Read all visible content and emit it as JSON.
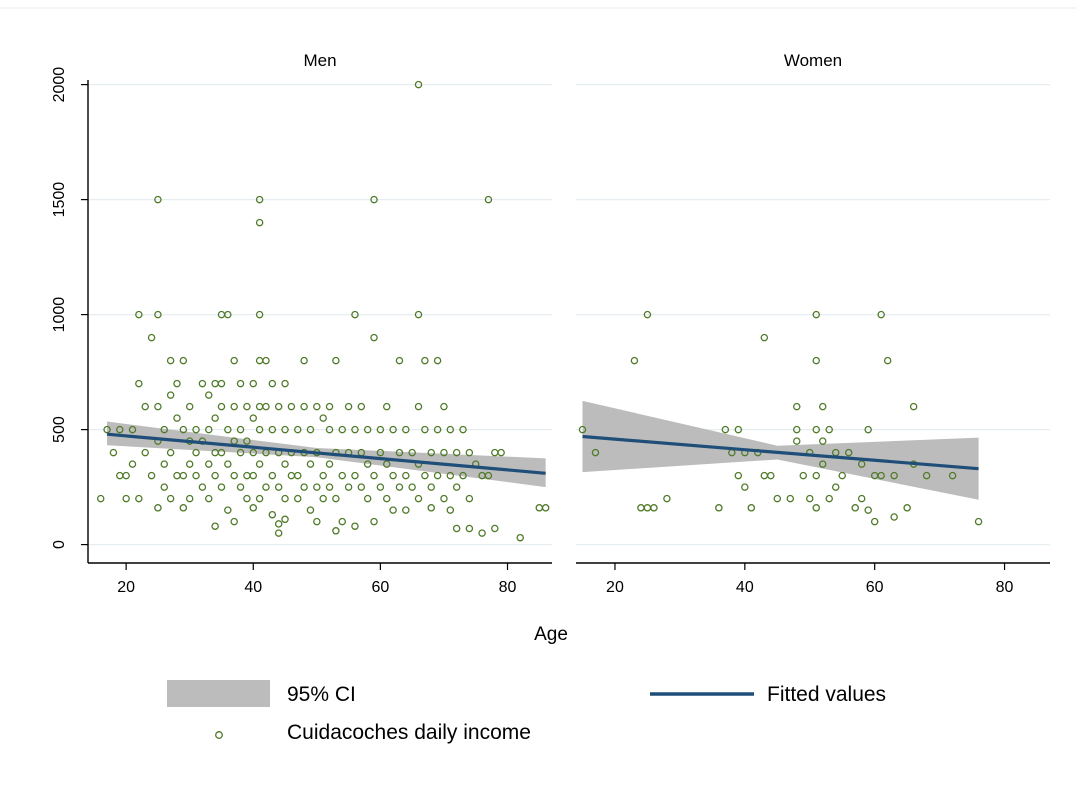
{
  "chart_data": {
    "type": "scatter",
    "xlabel": "Age",
    "ylabel": "",
    "xticks": [
      20,
      40,
      60,
      80
    ],
    "yticks": [
      0,
      500,
      1000,
      1500,
      2000
    ],
    "xlim": [
      14,
      87
    ],
    "ylim": [
      -80,
      2020
    ],
    "grid": true,
    "legend_position": "bottom",
    "legend": {
      "ci_label": "95% CI",
      "fit_label": "Fitted values",
      "scatter_label": "Cuidacoches daily income"
    },
    "colors": {
      "scatter": "#4f7a28",
      "fit": "#1f4e79",
      "ci": "#bcbcbc",
      "grid": "#e6eef1"
    },
    "panels": [
      {
        "title": "Men",
        "fit": {
          "x": [
            17,
            86
          ],
          "y": [
            480,
            310
          ]
        },
        "ci": {
          "x": [
            17,
            50,
            86
          ],
          "upper": [
            535,
            420,
            375
          ],
          "lower": [
            432,
            380,
            250
          ]
        },
        "scatter": [
          [
            16,
            200
          ],
          [
            17,
            500
          ],
          [
            18,
            400
          ],
          [
            19,
            300
          ],
          [
            19,
            500
          ],
          [
            20,
            300
          ],
          [
            20,
            200
          ],
          [
            21,
            350
          ],
          [
            21,
            500
          ],
          [
            22,
            700
          ],
          [
            22,
            1000
          ],
          [
            22,
            200
          ],
          [
            23,
            400
          ],
          [
            23,
            600
          ],
          [
            24,
            900
          ],
          [
            24,
            300
          ],
          [
            25,
            1000
          ],
          [
            25,
            1500
          ],
          [
            25,
            600
          ],
          [
            25,
            450
          ],
          [
            25,
            160
          ],
          [
            26,
            500
          ],
          [
            26,
            350
          ],
          [
            26,
            250
          ],
          [
            27,
            800
          ],
          [
            27,
            650
          ],
          [
            27,
            400
          ],
          [
            27,
            200
          ],
          [
            28,
            700
          ],
          [
            28,
            550
          ],
          [
            28,
            300
          ],
          [
            29,
            800
          ],
          [
            29,
            500
          ],
          [
            29,
            300
          ],
          [
            29,
            160
          ],
          [
            30,
            600
          ],
          [
            30,
            450
          ],
          [
            30,
            350
          ],
          [
            30,
            200
          ],
          [
            31,
            500
          ],
          [
            31,
            400
          ],
          [
            31,
            300
          ],
          [
            32,
            700
          ],
          [
            32,
            450
          ],
          [
            32,
            250
          ],
          [
            33,
            650
          ],
          [
            33,
            500
          ],
          [
            33,
            350
          ],
          [
            33,
            200
          ],
          [
            34,
            700
          ],
          [
            34,
            550
          ],
          [
            34,
            400
          ],
          [
            34,
            300
          ],
          [
            34,
            80
          ],
          [
            35,
            1000
          ],
          [
            35,
            700
          ],
          [
            35,
            600
          ],
          [
            35,
            400
          ],
          [
            35,
            250
          ],
          [
            36,
            1000
          ],
          [
            36,
            500
          ],
          [
            36,
            350
          ],
          [
            36,
            150
          ],
          [
            37,
            800
          ],
          [
            37,
            600
          ],
          [
            37,
            450
          ],
          [
            37,
            300
          ],
          [
            37,
            100
          ],
          [
            38,
            700
          ],
          [
            38,
            500
          ],
          [
            38,
            400
          ],
          [
            38,
            250
          ],
          [
            39,
            600
          ],
          [
            39,
            450
          ],
          [
            39,
            300
          ],
          [
            39,
            200
          ],
          [
            40,
            700
          ],
          [
            40,
            550
          ],
          [
            40,
            400
          ],
          [
            40,
            300
          ],
          [
            40,
            160
          ],
          [
            41,
            1500
          ],
          [
            41,
            1400
          ],
          [
            41,
            1000
          ],
          [
            41,
            800
          ],
          [
            41,
            600
          ],
          [
            41,
            500
          ],
          [
            41,
            350
          ],
          [
            41,
            200
          ],
          [
            42,
            800
          ],
          [
            42,
            600
          ],
          [
            42,
            400
          ],
          [
            42,
            250
          ],
          [
            43,
            700
          ],
          [
            43,
            500
          ],
          [
            43,
            300
          ],
          [
            43,
            130
          ],
          [
            44,
            600
          ],
          [
            44,
            400
          ],
          [
            44,
            250
          ],
          [
            44,
            90
          ],
          [
            44,
            50
          ],
          [
            45,
            700
          ],
          [
            45,
            500
          ],
          [
            45,
            350
          ],
          [
            45,
            200
          ],
          [
            45,
            110
          ],
          [
            46,
            600
          ],
          [
            46,
            400
          ],
          [
            46,
            300
          ],
          [
            47,
            500
          ],
          [
            47,
            300
          ],
          [
            47,
            200
          ],
          [
            48,
            800
          ],
          [
            48,
            600
          ],
          [
            48,
            400
          ],
          [
            48,
            250
          ],
          [
            49,
            500
          ],
          [
            49,
            350
          ],
          [
            49,
            150
          ],
          [
            50,
            600
          ],
          [
            50,
            400
          ],
          [
            50,
            250
          ],
          [
            50,
            100
          ],
          [
            51,
            550
          ],
          [
            51,
            300
          ],
          [
            51,
            200
          ],
          [
            52,
            600
          ],
          [
            52,
            500
          ],
          [
            52,
            350
          ],
          [
            52,
            250
          ],
          [
            53,
            800
          ],
          [
            53,
            400
          ],
          [
            53,
            200
          ],
          [
            53,
            60
          ],
          [
            54,
            500
          ],
          [
            54,
            300
          ],
          [
            54,
            100
          ],
          [
            55,
            600
          ],
          [
            55,
            400
          ],
          [
            55,
            250
          ],
          [
            56,
            1000
          ],
          [
            56,
            500
          ],
          [
            56,
            300
          ],
          [
            56,
            80
          ],
          [
            57,
            600
          ],
          [
            57,
            400
          ],
          [
            57,
            250
          ],
          [
            58,
            500
          ],
          [
            58,
            350
          ],
          [
            58,
            200
          ],
          [
            59,
            900
          ],
          [
            59,
            1500
          ],
          [
            59,
            300
          ],
          [
            59,
            100
          ],
          [
            60,
            500
          ],
          [
            60,
            400
          ],
          [
            60,
            250
          ],
          [
            61,
            600
          ],
          [
            61,
            350
          ],
          [
            61,
            200
          ],
          [
            62,
            500
          ],
          [
            62,
            300
          ],
          [
            62,
            150
          ],
          [
            63,
            800
          ],
          [
            63,
            400
          ],
          [
            63,
            250
          ],
          [
            64,
            500
          ],
          [
            64,
            300
          ],
          [
            64,
            150
          ],
          [
            65,
            400
          ],
          [
            65,
            250
          ],
          [
            66,
            2000
          ],
          [
            66,
            1000
          ],
          [
            66,
            600
          ],
          [
            66,
            350
          ],
          [
            66,
            200
          ],
          [
            67,
            800
          ],
          [
            67,
            500
          ],
          [
            67,
            300
          ],
          [
            68,
            400
          ],
          [
            68,
            250
          ],
          [
            68,
            160
          ],
          [
            69,
            800
          ],
          [
            69,
            500
          ],
          [
            69,
            300
          ],
          [
            70,
            600
          ],
          [
            70,
            400
          ],
          [
            70,
            200
          ],
          [
            71,
            500
          ],
          [
            71,
            300
          ],
          [
            71,
            150
          ],
          [
            72,
            400
          ],
          [
            72,
            250
          ],
          [
            72,
            70
          ],
          [
            73,
            500
          ],
          [
            73,
            300
          ],
          [
            74,
            400
          ],
          [
            74,
            200
          ],
          [
            74,
            70
          ],
          [
            75,
            350
          ],
          [
            76,
            300
          ],
          [
            76,
            50
          ],
          [
            77,
            1500
          ],
          [
            77,
            300
          ],
          [
            78,
            400
          ],
          [
            78,
            70
          ],
          [
            79,
            400
          ],
          [
            82,
            30
          ],
          [
            85,
            160
          ],
          [
            86,
            160
          ]
        ]
      },
      {
        "title": "Women",
        "fit": {
          "x": [
            15,
            76
          ],
          "y": [
            470,
            330
          ]
        },
        "ci": {
          "x": [
            15,
            45,
            76
          ],
          "upper": [
            625,
            430,
            465
          ],
          "lower": [
            315,
            370,
            195
          ]
        },
        "scatter": [
          [
            15,
            500
          ],
          [
            17,
            400
          ],
          [
            23,
            800
          ],
          [
            24,
            160
          ],
          [
            25,
            1000
          ],
          [
            25,
            160
          ],
          [
            26,
            160
          ],
          [
            28,
            200
          ],
          [
            36,
            160
          ],
          [
            37,
            500
          ],
          [
            38,
            400
          ],
          [
            39,
            500
          ],
          [
            39,
            300
          ],
          [
            40,
            400
          ],
          [
            40,
            250
          ],
          [
            41,
            160
          ],
          [
            42,
            400
          ],
          [
            43,
            300
          ],
          [
            43,
            900
          ],
          [
            44,
            300
          ],
          [
            45,
            200
          ],
          [
            47,
            200
          ],
          [
            48,
            600
          ],
          [
            48,
            500
          ],
          [
            48,
            450
          ],
          [
            49,
            300
          ],
          [
            50,
            400
          ],
          [
            50,
            200
          ],
          [
            51,
            1000
          ],
          [
            51,
            800
          ],
          [
            51,
            500
          ],
          [
            51,
            300
          ],
          [
            51,
            160
          ],
          [
            52,
            600
          ],
          [
            52,
            450
          ],
          [
            52,
            350
          ],
          [
            53,
            200
          ],
          [
            53,
            500
          ],
          [
            54,
            400
          ],
          [
            54,
            250
          ],
          [
            55,
            300
          ],
          [
            56,
            400
          ],
          [
            57,
            160
          ],
          [
            58,
            350
          ],
          [
            58,
            200
          ],
          [
            59,
            500
          ],
          [
            59,
            150
          ],
          [
            60,
            300
          ],
          [
            60,
            100
          ],
          [
            61,
            1000
          ],
          [
            61,
            300
          ],
          [
            62,
            800
          ],
          [
            63,
            300
          ],
          [
            63,
            120
          ],
          [
            65,
            160
          ],
          [
            66,
            600
          ],
          [
            66,
            350
          ],
          [
            68,
            300
          ],
          [
            72,
            300
          ],
          [
            76,
            100
          ]
        ]
      }
    ]
  }
}
